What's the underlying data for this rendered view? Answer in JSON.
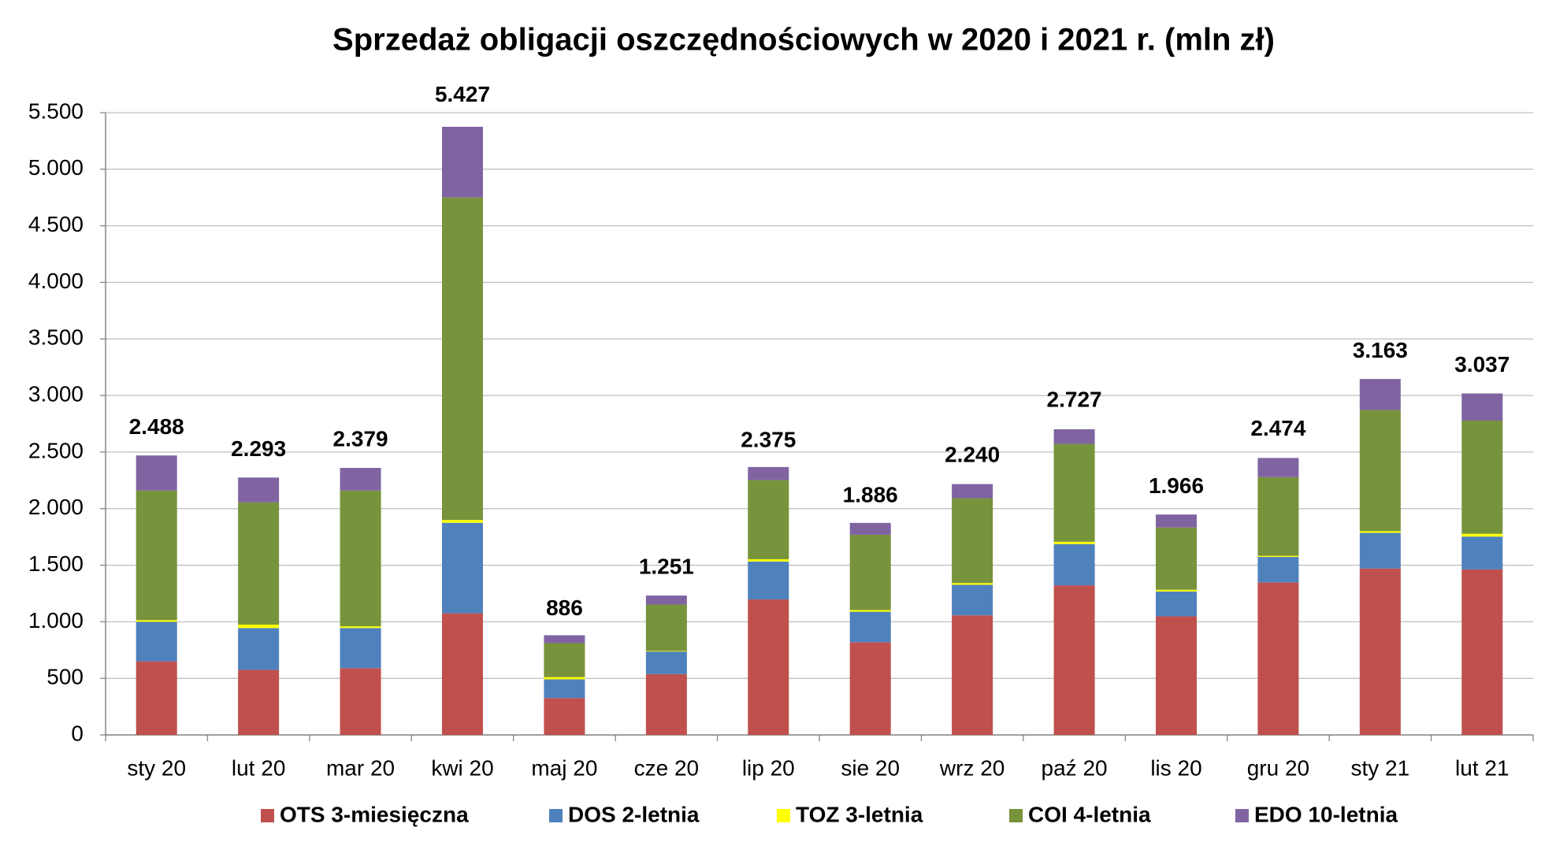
{
  "chart_data": {
    "type": "stacked_bar",
    "title": "Sprzedaż obligacji oszczędnościowych w 2020 i 2021 r. (mln zł)",
    "categories": [
      "sty 20",
      "lut 20",
      "mar 20",
      "kwi 20",
      "maj 20",
      "cze 20",
      "lip 20",
      "sie 20",
      "wrz 20",
      "paź 20",
      "lis 20",
      "gru 20",
      "sty 21",
      "lut 21"
    ],
    "series": [
      {
        "name": "OTS 3-miesięczna",
        "color": "#c0504d",
        "values": [
          650,
          575,
          590,
          1075,
          326,
          537,
          1198,
          819,
          1057,
          1322,
          1048,
          1348,
          1471,
          1463
        ]
      },
      {
        "name": "DOS 2-letnia",
        "color": "#4f81bd",
        "values": [
          350,
          370,
          355,
          800,
          165,
          200,
          335,
          270,
          270,
          365,
          220,
          225,
          315,
          290
        ]
      },
      {
        "name": "TOZ 3-letnia",
        "color": "#ffff00",
        "values": [
          15,
          30,
          15,
          25,
          20,
          5,
          20,
          15,
          15,
          20,
          15,
          10,
          15,
          25
        ]
      },
      {
        "name": "COI 4-letnia",
        "color": "#77933c",
        "values": [
          1145,
          1080,
          1200,
          2850,
          300,
          410,
          700,
          665,
          750,
          865,
          550,
          695,
          1070,
          1000
        ]
      },
      {
        "name": "EDO 10-letnia",
        "color": "#8064a2",
        "values": [
          310,
          220,
          200,
          625,
          70,
          80,
          115,
          105,
          125,
          130,
          115,
          170,
          275,
          240
        ]
      }
    ],
    "totals": {
      "values": [
        2488,
        2293,
        2379,
        5427,
        886,
        1251,
        2375,
        1886,
        2240,
        2727,
        1966,
        2474,
        3163,
        3037
      ],
      "value_labels": [
        "2.488",
        "2.293",
        "2.379",
        "5.427",
        "886",
        "1.251",
        "2.375",
        "1.886",
        "2.240",
        "2.727",
        "1.966",
        "2.474",
        "3.163",
        "3.037"
      ]
    },
    "ylim": [
      0,
      5500
    ],
    "yticks": [
      0,
      500,
      {
        "value": 1000,
        "label": "1.000"
      },
      {
        "value": 1500,
        "label": "1.500"
      },
      {
        "value": 2000,
        "label": "2.000"
      },
      {
        "value": 2500,
        "label": "2.500"
      },
      {
        "value": 3000,
        "label": "3.000"
      },
      {
        "value": 3500,
        "label": "3.500"
      },
      {
        "value": 4000,
        "label": "4.000"
      },
      {
        "value": 4500,
        "label": "4.500"
      },
      {
        "value": 5000,
        "label": "5.000"
      },
      {
        "value": 5500,
        "label": "5.500"
      }
    ],
    "grid": true,
    "legend": "bottom"
  }
}
